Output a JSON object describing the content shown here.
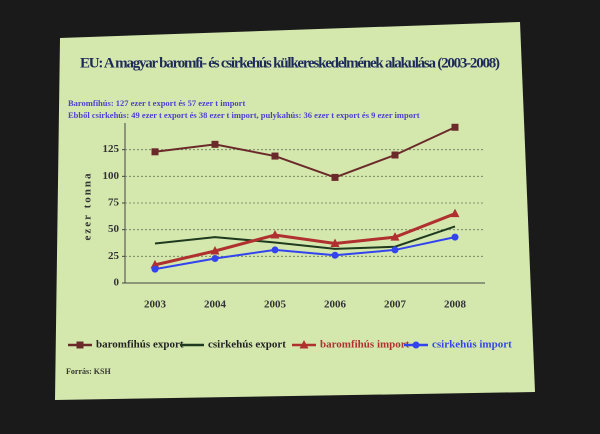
{
  "chart_data": {
    "type": "line",
    "title": "EU: A magyar baromfi- és csirkehús külkereskedelmének alakulása (2003-2008)",
    "subtitle": [
      "Baromfihús: 127 ezer t export és 57 ezer t import",
      "Ebből csirkehús: 49 ezer t export és 38 ezer t import, pulykahús: 36 ezer t export és 9 ezer import"
    ],
    "y_label": "ezer tonna",
    "source": "Forrás: KSH",
    "categories": [
      "2003",
      "2004",
      "2005",
      "2006",
      "2007",
      "2008"
    ],
    "series": [
      {
        "name": "baromfihús export",
        "color": "#6b2a2a",
        "marker": "square",
        "values": [
          123,
          130,
          119,
          99,
          120,
          146
        ]
      },
      {
        "name": "csirkehús export",
        "color": "#1f3a1f",
        "marker": "none",
        "values": [
          37,
          43,
          38,
          32,
          34,
          53
        ]
      },
      {
        "name": "baromfihús import",
        "color": "#b03030",
        "marker": "triangle",
        "values": [
          17,
          30,
          45,
          37,
          43,
          65
        ]
      },
      {
        "name": "csirkehús import",
        "color": "#3344ee",
        "marker": "circle",
        "values": [
          13,
          23,
          31,
          26,
          31,
          43
        ]
      }
    ],
    "ylim": [
      0,
      150
    ],
    "yticks": [
      0,
      25,
      50,
      75,
      100,
      125
    ],
    "grid": true
  }
}
